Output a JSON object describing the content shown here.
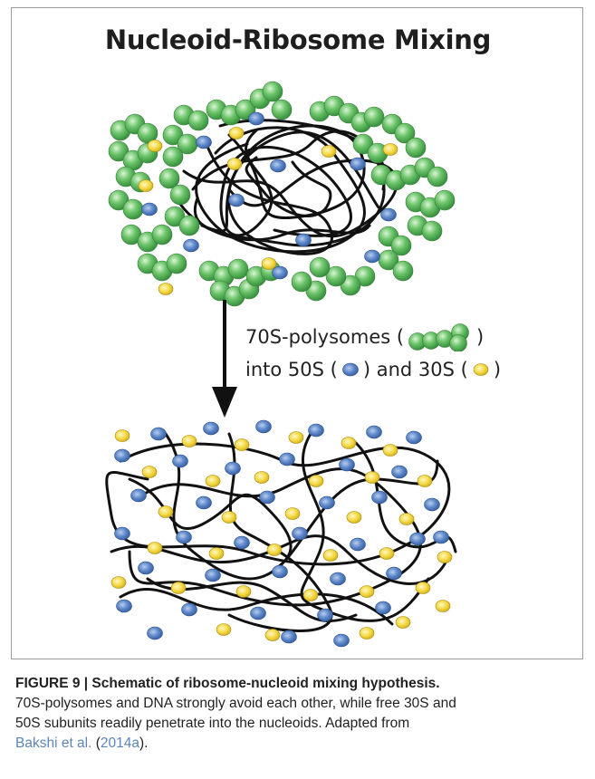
{
  "figure": {
    "title": "Nucleoid-Ribosome Mixing",
    "arrow_text_line1_prefix": "70S-polysomes (",
    "arrow_text_line1_suffix": ")",
    "arrow_text_line2_part1": "into 50S (",
    "arrow_text_line2_part2": ") and 30S (",
    "arrow_text_line2_part3": ")",
    "colors": {
      "polysome_green": "#5cb85c",
      "subunit_50S_blue": "#5b86c8",
      "subunit_30S_yellow": "#f3d63e",
      "dna_black": "#111111"
    }
  },
  "caption": {
    "label": "FIGURE 9 | Schematic of ribosome-nucleoid mixing hypothesis.",
    "text_line1": "70S-polysomes and DNA strongly avoid each other, while free 30S and",
    "text_line2": "50S subunits readily penetrate into the nucleoids. Adapted from",
    "citation_author": "Bakshi et al.",
    "citation_open": " (",
    "citation_year": "2014a",
    "citation_close": ")."
  }
}
